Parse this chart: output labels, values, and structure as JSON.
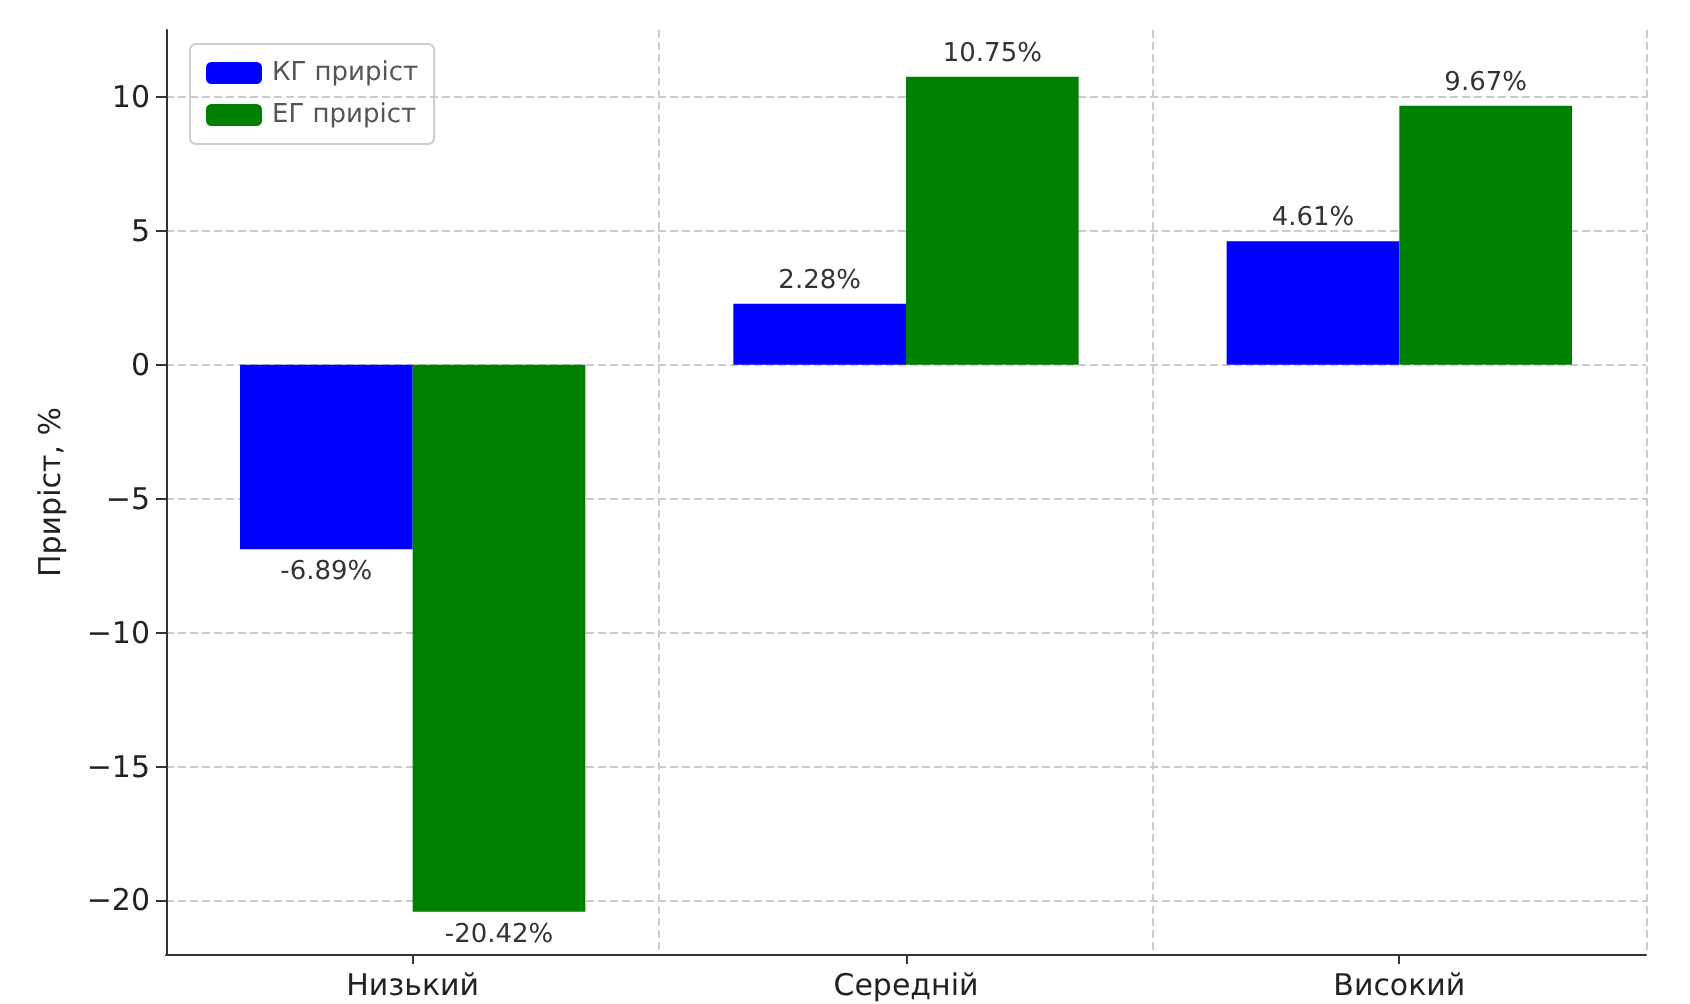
{
  "chart_data": {
    "type": "bar",
    "ylabel": "Приріст, %",
    "categories": [
      "Низький",
      "Середній",
      "Високий"
    ],
    "series": [
      {
        "name": "КГ приріст",
        "color": "#0000ff",
        "values": [
          -6.89,
          2.28,
          4.61
        ],
        "value_labels": [
          "-6.89%",
          "2.28%",
          "4.61%"
        ]
      },
      {
        "name": "ЕГ приріст",
        "color": "#008000",
        "values": [
          -20.42,
          10.75,
          9.67
        ],
        "value_labels": [
          "-20.42%",
          "10.75%",
          "9.67%"
        ]
      }
    ],
    "ylim": [
      -22,
      12.5
    ],
    "yticks": [
      -20,
      -15,
      -10,
      -5,
      0,
      5,
      10
    ],
    "grid": true,
    "legend": "top left"
  }
}
